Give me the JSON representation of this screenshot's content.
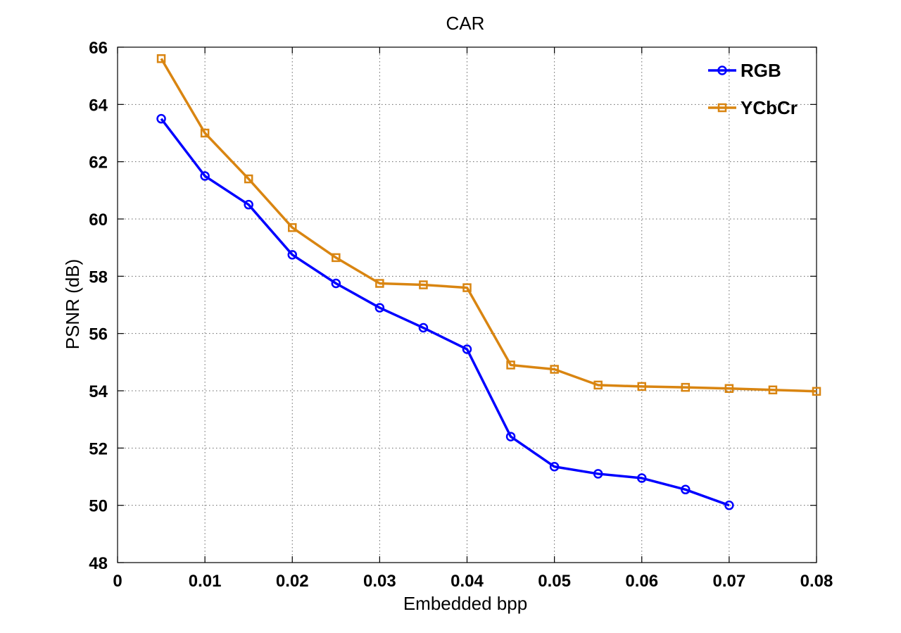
{
  "chart_data": {
    "type": "line",
    "title": "CAR",
    "xlabel": "Embedded bpp",
    "ylabel": "PSNR (dB)",
    "xlim": [
      0,
      0.08
    ],
    "ylim": [
      48,
      66
    ],
    "xticks": [
      0,
      0.01,
      0.02,
      0.03,
      0.04,
      0.05,
      0.06,
      0.07,
      0.08
    ],
    "xtick_labels": [
      "0",
      "0.01",
      "0.02",
      "0.03",
      "0.04",
      "0.05",
      "0.06",
      "0.07",
      "0.08"
    ],
    "yticks": [
      48,
      50,
      52,
      54,
      56,
      58,
      60,
      62,
      64,
      66
    ],
    "ytick_labels": [
      "48",
      "50",
      "52",
      "54",
      "56",
      "58",
      "60",
      "62",
      "64",
      "66"
    ],
    "grid": true,
    "legend_position": "top-right",
    "series": [
      {
        "name": "RGB",
        "color": "#0000ff",
        "marker": "circle",
        "x": [
          0.005,
          0.01,
          0.015,
          0.02,
          0.025,
          0.03,
          0.035,
          0.04,
          0.045,
          0.05,
          0.055,
          0.06,
          0.065,
          0.07
        ],
        "y": [
          63.5,
          61.5,
          60.5,
          58.75,
          57.75,
          56.9,
          56.2,
          55.45,
          52.4,
          51.35,
          51.1,
          50.95,
          50.55,
          50.0
        ]
      },
      {
        "name": "YCbCr",
        "color": "#d98511",
        "marker": "square",
        "x": [
          0.005,
          0.01,
          0.015,
          0.02,
          0.025,
          0.03,
          0.035,
          0.04,
          0.045,
          0.05,
          0.055,
          0.06,
          0.065,
          0.07,
          0.075,
          0.08
        ],
        "y": [
          65.6,
          63.0,
          61.4,
          59.7,
          58.65,
          57.75,
          57.7,
          57.6,
          54.9,
          54.75,
          54.2,
          54.15,
          54.12,
          54.08,
          54.03,
          53.98
        ]
      }
    ]
  }
}
